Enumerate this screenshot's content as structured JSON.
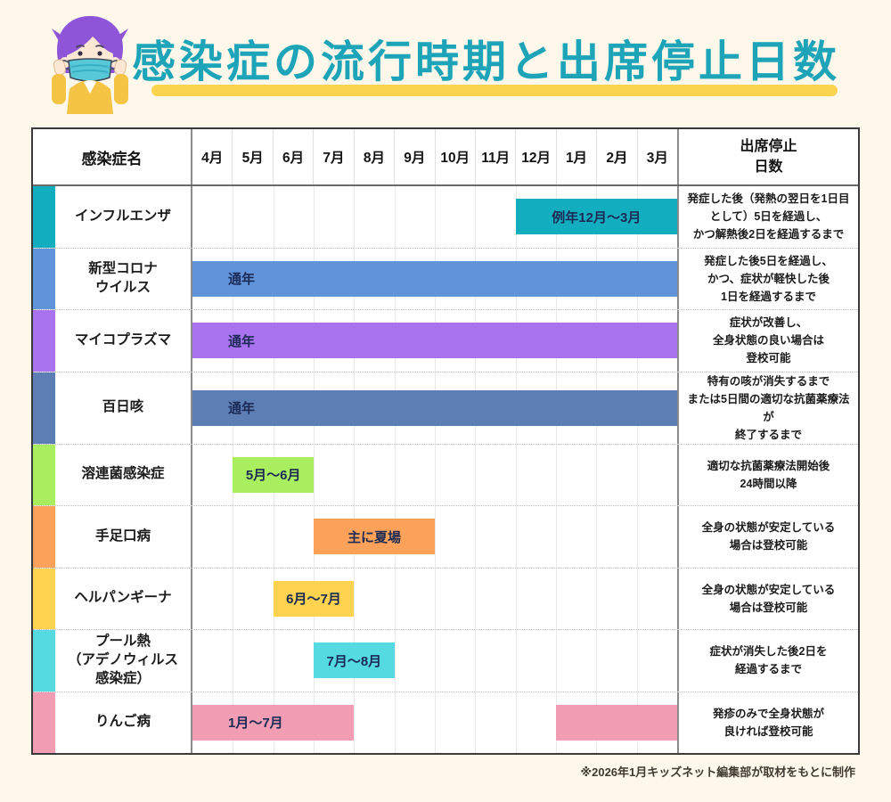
{
  "title": "感染症の流行時期と出席停止日数",
  "footer": "※2026年1月キッズネット編集部が取材をもとに制作",
  "colors": {
    "title": "#1ea4b8",
    "underline": "#fbd44f",
    "page_background": "#fdf8e9",
    "bar_label_text": "#1b2a55"
  },
  "table": {
    "disease_header": "感染症名",
    "suspension_header": [
      "出席停止",
      "日数"
    ],
    "months": [
      "4月",
      "5月",
      "6月",
      "7月",
      "8月",
      "9月",
      "10月",
      "11月",
      "12月",
      "1月",
      "2月",
      "3月"
    ],
    "rows": [
      {
        "name_lines": [
          "インフルエンザ"
        ],
        "color": "#12aec0",
        "bars": [
          {
            "start": 8,
            "span": 4,
            "label": "例年12月〜3月",
            "align": "center"
          }
        ],
        "susp_lines": [
          "発症した後（発熱の翌日を1日目",
          "として）5日を経過し、",
          "かつ解熱後2日を経過するまで"
        ]
      },
      {
        "name_lines": [
          "新型コロナ",
          "ウイルス"
        ],
        "color": "#6193db",
        "bars": [
          {
            "start": 0,
            "span": 12,
            "label": "通年",
            "align": "left"
          }
        ],
        "susp_lines": [
          "発症した後5日を経過し、",
          "かつ、症状が軽快した後",
          "1日を経過するまで"
        ]
      },
      {
        "name_lines": [
          "マイコプラズマ"
        ],
        "color": "#a973f0",
        "bars": [
          {
            "start": 0,
            "span": 12,
            "label": "通年",
            "align": "left"
          }
        ],
        "susp_lines": [
          "症状が改善し、",
          "全身状態の良い場合は",
          "登校可能"
        ]
      },
      {
        "name_lines": [
          "百日咳"
        ],
        "color": "#5c7eb4",
        "bars": [
          {
            "start": 0,
            "span": 12,
            "label": "通年",
            "align": "left"
          }
        ],
        "susp_lines": [
          "特有の咳が消失するまで",
          "または5日間の適切な抗菌薬療法が",
          "終了するまで"
        ]
      },
      {
        "name_lines": [
          "溶連菌感染症"
        ],
        "color": "#a9ee5f",
        "bars": [
          {
            "start": 1,
            "span": 2,
            "label": "5月〜6月",
            "align": "center"
          }
        ],
        "susp_lines": [
          "適切な抗菌薬療法開始後",
          "24時間以降"
        ]
      },
      {
        "name_lines": [
          "手足口病"
        ],
        "color": "#fba159",
        "bars": [
          {
            "start": 3,
            "span": 3,
            "label": "主に夏場",
            "align": "center"
          }
        ],
        "susp_lines": [
          "全身の状態が安定している",
          "場合は登校可能"
        ]
      },
      {
        "name_lines": [
          "ヘルパンギーナ"
        ],
        "color": "#ffd34f",
        "bars": [
          {
            "start": 2,
            "span": 2,
            "label": "6月〜7月",
            "align": "center"
          }
        ],
        "susp_lines": [
          "全身の状態が安定している",
          "場合は登校可能"
        ]
      },
      {
        "name_lines": [
          "プール熱",
          "（アデノウィルス",
          "感染症）"
        ],
        "color": "#55dae2",
        "bars": [
          {
            "start": 3,
            "span": 2,
            "label": "7月〜8月",
            "align": "center"
          }
        ],
        "susp_lines": [
          "症状が消失した後2日を",
          "経過するまで"
        ]
      },
      {
        "name_lines": [
          "りんご病"
        ],
        "color": "#f29db4",
        "bars": [
          {
            "start": 0,
            "span": 4,
            "label": "1月〜7月",
            "align": "left"
          },
          {
            "start": 9,
            "span": 3,
            "label": "",
            "align": "center"
          }
        ],
        "susp_lines": [
          "発疹のみで全身状態が",
          "良ければ登校可能"
        ]
      }
    ]
  },
  "chart_data": {
    "type": "bar",
    "subtype": "seasonal-gantt",
    "title": "感染症の流行時期と出席停止日数",
    "x_categories": [
      "4月",
      "5月",
      "6月",
      "7月",
      "8月",
      "9月",
      "10月",
      "11月",
      "12月",
      "1月",
      "2月",
      "3月"
    ],
    "rows": [
      {
        "disease": "インフルエンザ",
        "periods": [
          {
            "from": "12月",
            "to": "3月"
          }
        ],
        "period_label": "例年12月〜3月",
        "suspension": "発症した後（発熱の翌日を1日目として）5日を経過し、かつ解熱後2日を経過するまで"
      },
      {
        "disease": "新型コロナウイルス",
        "periods": [
          {
            "from": "4月",
            "to": "3月"
          }
        ],
        "period_label": "通年",
        "suspension": "発症した後5日を経過し、かつ、症状が軽快した後1日を経過するまで"
      },
      {
        "disease": "マイコプラズマ",
        "periods": [
          {
            "from": "4月",
            "to": "3月"
          }
        ],
        "period_label": "通年",
        "suspension": "症状が改善し、全身状態の良い場合は登校可能"
      },
      {
        "disease": "百日咳",
        "periods": [
          {
            "from": "4月",
            "to": "3月"
          }
        ],
        "period_label": "通年",
        "suspension": "特有の咳が消失するまでまたは5日間の適切な抗菌薬療法が終了するまで"
      },
      {
        "disease": "溶連菌感染症",
        "periods": [
          {
            "from": "5月",
            "to": "6月"
          }
        ],
        "period_label": "5月〜6月",
        "suspension": "適切な抗菌薬療法開始後24時間以降"
      },
      {
        "disease": "手足口病",
        "periods": [
          {
            "from": "7月",
            "to": "9月"
          }
        ],
        "period_label": "主に夏場",
        "suspension": "全身の状態が安定している場合は登校可能"
      },
      {
        "disease": "ヘルパンギーナ",
        "periods": [
          {
            "from": "6月",
            "to": "7月"
          }
        ],
        "period_label": "6月〜7月",
        "suspension": "全身の状態が安定している場合は登校可能"
      },
      {
        "disease": "プール熱（アデノウィルス感染症）",
        "periods": [
          {
            "from": "7月",
            "to": "8月"
          }
        ],
        "period_label": "7月〜8月",
        "suspension": "症状が消失した後2日を経過するまで"
      },
      {
        "disease": "りんご病",
        "periods": [
          {
            "from": "1月",
            "to": "7月"
          }
        ],
        "period_label": "1月〜7月",
        "suspension": "発疹のみで全身状態が良ければ登校可能"
      }
    ]
  }
}
